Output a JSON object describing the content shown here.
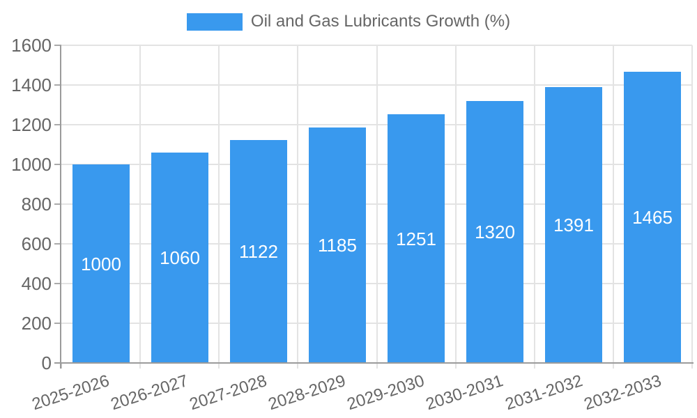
{
  "chart_data": {
    "type": "bar",
    "title": "",
    "legend_position": "top-center",
    "categories": [
      "2025-2026",
      "2026-2027",
      "2027-2028",
      "2028-2029",
      "2029-2030",
      "2030-2031",
      "2031-2032",
      "2032-2033"
    ],
    "series": [
      {
        "name": "Oil and Gas Lubricants Growth (%)",
        "values": [
          1000,
          1060,
          1122,
          1185,
          1251,
          1320,
          1391,
          1465
        ]
      }
    ],
    "bar_value_labels": [
      "1000",
      "1060",
      "1122",
      "1185",
      "1251",
      "1320",
      "1391",
      "1465"
    ],
    "xlabel": "",
    "ylabel": "",
    "ylim": [
      0,
      1600
    ],
    "yticks": [
      0,
      200,
      400,
      600,
      800,
      1000,
      1200,
      1400,
      1600
    ],
    "grid": true,
    "x_tick_rotation_deg": -18,
    "colors": {
      "bar": "#3999EE",
      "bar_label_text": "#FFFFFF",
      "axis_text": "#666666",
      "legend_text": "#666666",
      "grid_line": "#E3E3E3",
      "tick_stub": "#AAAAAA",
      "bottom_tick_stub": "#CCCCCC",
      "axis_line": "#9B9B9B",
      "background": "#FFFFFF"
    }
  }
}
